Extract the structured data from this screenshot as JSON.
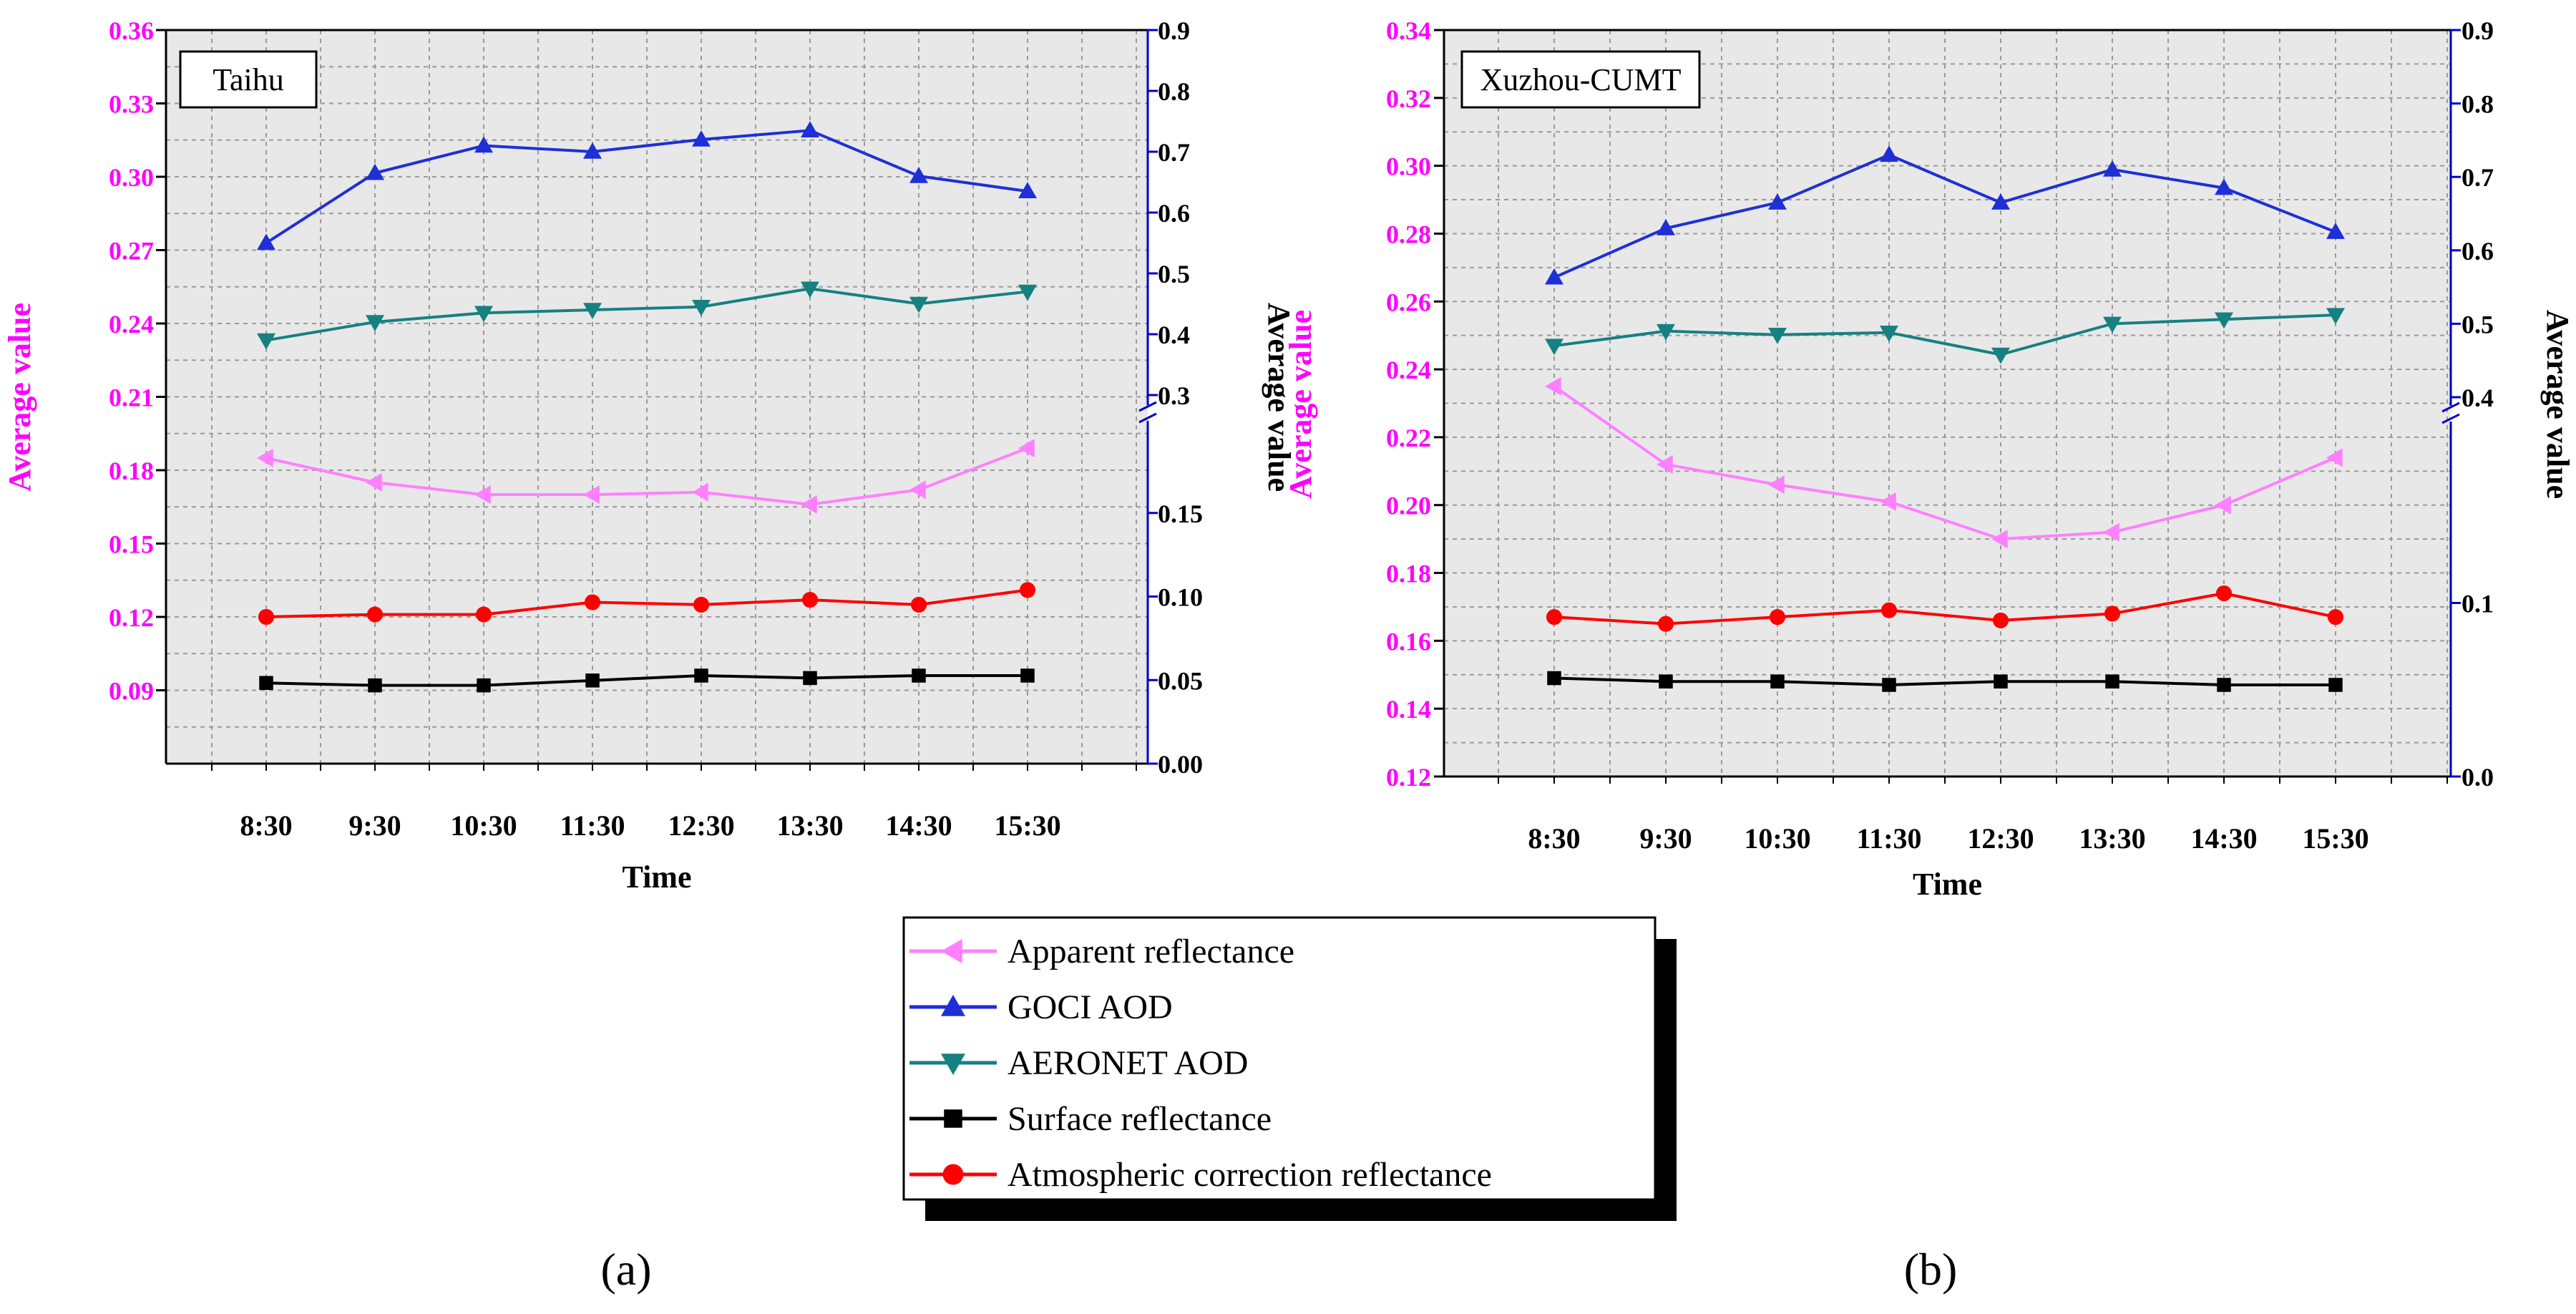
{
  "figure": {
    "panel_labels": [
      "(a)",
      "(b)"
    ],
    "colors": {
      "left_axis": "#ff00ff",
      "right_axis": "#0000cc",
      "plot_bg": "#e8e8e8"
    },
    "legend": [
      {
        "name": "Apparent reflectance",
        "color": "#ff80ff",
        "marker": "triangle-left"
      },
      {
        "name": "GOCI AOD",
        "color": "#1f2fd6",
        "marker": "triangle-up"
      },
      {
        "name": "AERONET AOD",
        "color": "#178080",
        "marker": "triangle-down"
      },
      {
        "name": "Surface reflectance",
        "color": "#000000",
        "marker": "square"
      },
      {
        "name": "Atmospheric correction reflectance",
        "color": "#ff0000",
        "marker": "circle"
      }
    ]
  },
  "chart_data": [
    {
      "type": "line",
      "title": "Taihu",
      "xlabel": "Time",
      "ylabel_left": "Average value",
      "ylabel_right": "Average value",
      "categories": [
        "8:30",
        "9:30",
        "10:30",
        "11:30",
        "12:30",
        "13:30",
        "14:30",
        "15:30"
      ],
      "ylim_left": [
        0.06,
        0.36
      ],
      "yticks_left": [
        "0.36",
        "0.33",
        "0.30",
        "0.27",
        "0.24",
        "0.21",
        "0.18",
        "0.15",
        "0.12",
        "0.09"
      ],
      "right_axis": {
        "broken": true,
        "upper_range": [
          0.3,
          0.9
        ],
        "lower_range": [
          0.0,
          0.2
        ],
        "upper_ticks": [
          "0.9",
          "0.8",
          "0.7",
          "0.6",
          "0.5",
          "0.4",
          "0.3"
        ],
        "lower_ticks": [
          "0.15",
          "0.10",
          "0.05",
          "0.00"
        ]
      },
      "grid": true,
      "series": [
        {
          "name": "Apparent reflectance",
          "axis": "left",
          "values": [
            0.185,
            0.175,
            0.17,
            0.17,
            0.171,
            0.166,
            0.172,
            0.189
          ]
        },
        {
          "name": "GOCI AOD",
          "axis": "right",
          "values": [
            0.55,
            0.665,
            0.71,
            0.7,
            0.72,
            0.735,
            0.66,
            0.635
          ]
        },
        {
          "name": "AERONET AOD",
          "axis": "right",
          "values": [
            0.39,
            0.42,
            0.435,
            0.44,
            0.445,
            0.475,
            0.45,
            0.47
          ]
        },
        {
          "name": "Surface reflectance",
          "axis": "left",
          "values": [
            0.093,
            0.092,
            0.092,
            0.094,
            0.096,
            0.095,
            0.096,
            0.096
          ]
        },
        {
          "name": "Atmospheric correction reflectance",
          "axis": "left",
          "values": [
            0.12,
            0.121,
            0.121,
            0.126,
            0.125,
            0.127,
            0.125,
            0.131
          ]
        }
      ]
    },
    {
      "type": "line",
      "title": "Xuzhou-CUMT",
      "xlabel": "Time",
      "ylabel_left": "Average value",
      "ylabel_right": "Average value",
      "categories": [
        "8:30",
        "9:30",
        "10:30",
        "11:30",
        "12:30",
        "13:30",
        "14:30",
        "15:30"
      ],
      "ylim_left": [
        0.12,
        0.34
      ],
      "yticks_left": [
        "0.34",
        "0.32",
        "0.30",
        "0.28",
        "0.26",
        "0.24",
        "0.22",
        "0.20",
        "0.18",
        "0.16",
        "0.14",
        "0.12"
      ],
      "right_axis": {
        "broken": true,
        "upper_range": [
          0.4,
          0.9
        ],
        "lower_range": [
          0.0,
          0.2
        ],
        "upper_ticks": [
          "0.9",
          "0.8",
          "0.7",
          "0.6",
          "0.5",
          "0.4"
        ],
        "lower_ticks": [
          "0.1",
          "0.0"
        ]
      },
      "grid": true,
      "series": [
        {
          "name": "Apparent reflectance",
          "axis": "left",
          "values": [
            0.235,
            0.212,
            0.206,
            0.201,
            0.19,
            0.192,
            0.2,
            0.214
          ]
        },
        {
          "name": "GOCI AOD",
          "axis": "right",
          "values": [
            0.563,
            0.63,
            0.665,
            0.73,
            0.665,
            0.71,
            0.685,
            0.625
          ]
        },
        {
          "name": "AERONET AOD",
          "axis": "right",
          "values": [
            0.47,
            0.49,
            0.485,
            0.488,
            0.458,
            0.5,
            0.506,
            0.512
          ]
        },
        {
          "name": "Surface reflectance",
          "axis": "left",
          "values": [
            0.149,
            0.148,
            0.148,
            0.147,
            0.148,
            0.148,
            0.147,
            0.147
          ]
        },
        {
          "name": "Atmospheric correction reflectance",
          "axis": "left",
          "values": [
            0.167,
            0.165,
            0.167,
            0.169,
            0.166,
            0.168,
            0.174,
            0.167
          ]
        }
      ]
    }
  ]
}
